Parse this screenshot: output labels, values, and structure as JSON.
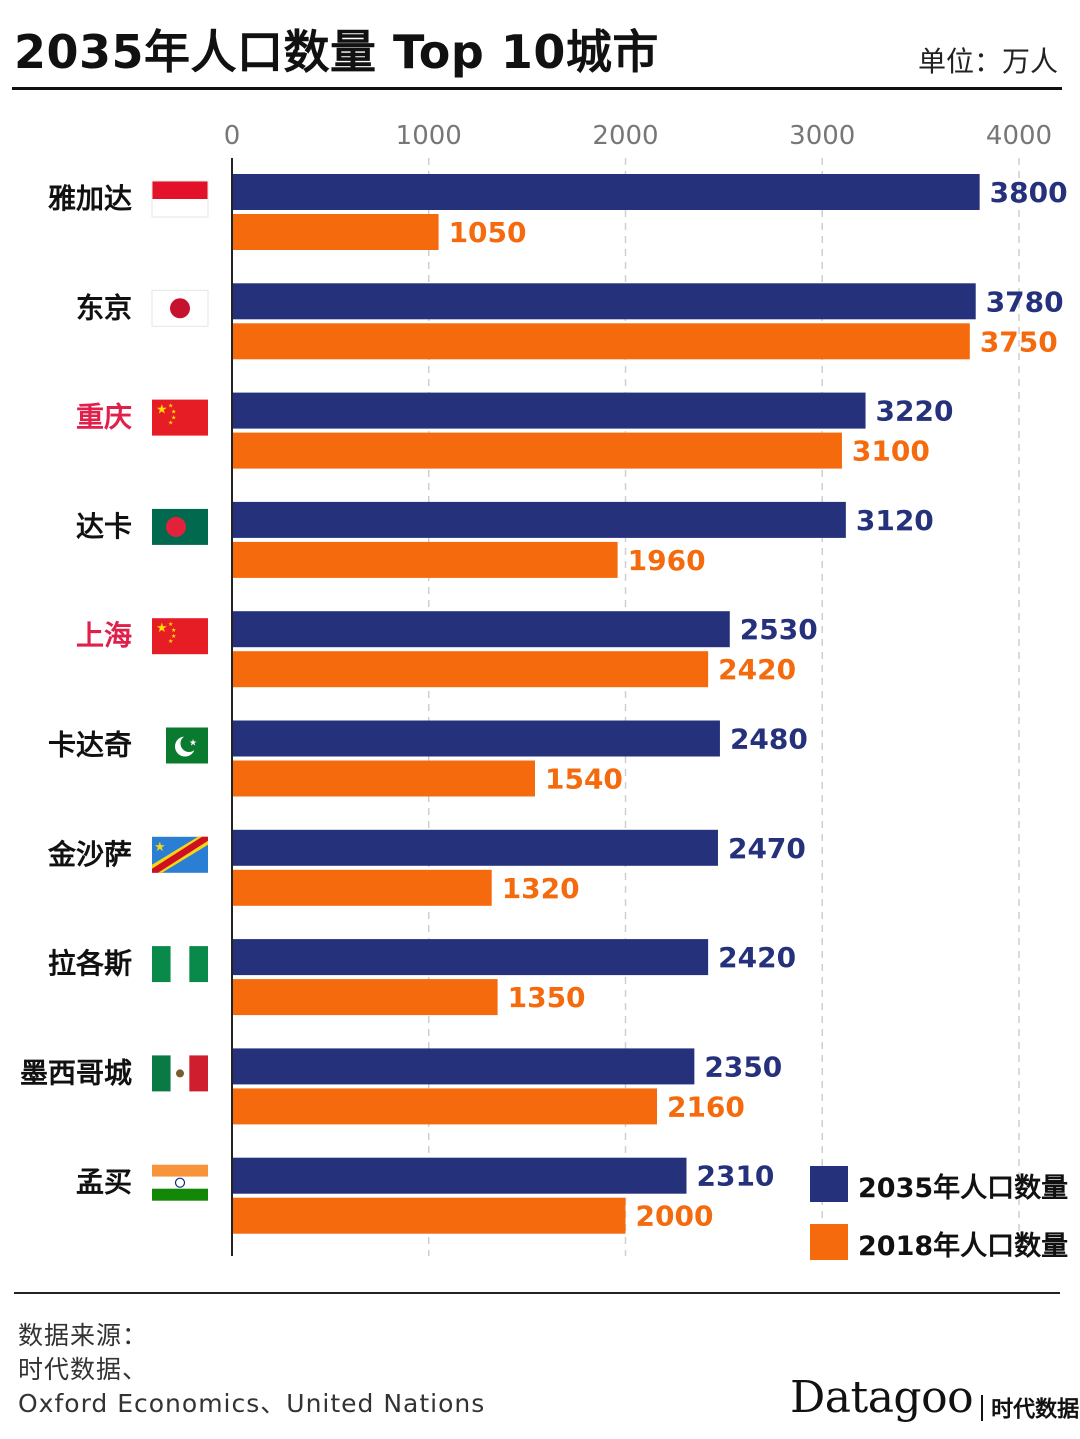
{
  "header": {
    "title": "2035年人口数量 Top 10城市",
    "unit": "单位：万人"
  },
  "colors": {
    "series_2035": "#25317b",
    "series_2018": "#f46a0d",
    "highlight_city": "#e0204b",
    "city": "#111111",
    "grid": "#cfcfcf"
  },
  "chart_data": {
    "type": "bar",
    "orientation": "horizontal",
    "title": "2035年人口数量 Top 10城市",
    "unit": "万人",
    "xlim": [
      0,
      4000
    ],
    "x_ticks": [
      0,
      1000,
      2000,
      3000,
      4000
    ],
    "grid": "vertical dashed",
    "legend_position": "bottom-right",
    "categories": [
      "雅加达",
      "东京",
      "重庆",
      "达卡",
      "上海",
      "卡达奇",
      "金沙萨",
      "拉各斯",
      "墨西哥城",
      "孟买"
    ],
    "highlighted_categories": [
      "重庆",
      "上海"
    ],
    "flag_icons": [
      "flag-indonesia-icon",
      "flag-japan-icon",
      "flag-china-icon",
      "flag-bangladesh-icon",
      "flag-china-icon",
      "flag-pakistan-icon",
      "flag-drcongo-icon",
      "flag-nigeria-icon",
      "flag-mexico-icon",
      "flag-india-icon"
    ],
    "series": [
      {
        "name": "2035年人口数量",
        "values": [
          3800,
          3780,
          3220,
          3120,
          2530,
          2480,
          2470,
          2420,
          2350,
          2310
        ]
      },
      {
        "name": "2018年人口数量",
        "values": [
          1050,
          3750,
          3100,
          1960,
          2420,
          1540,
          1320,
          1350,
          2160,
          2000
        ]
      }
    ]
  },
  "footer": {
    "source_lines": [
      "数据来源：",
      "时代数据、",
      "Oxford Economics、United Nations"
    ],
    "brand": "Datagoo",
    "brand_sub": "时代数据"
  }
}
